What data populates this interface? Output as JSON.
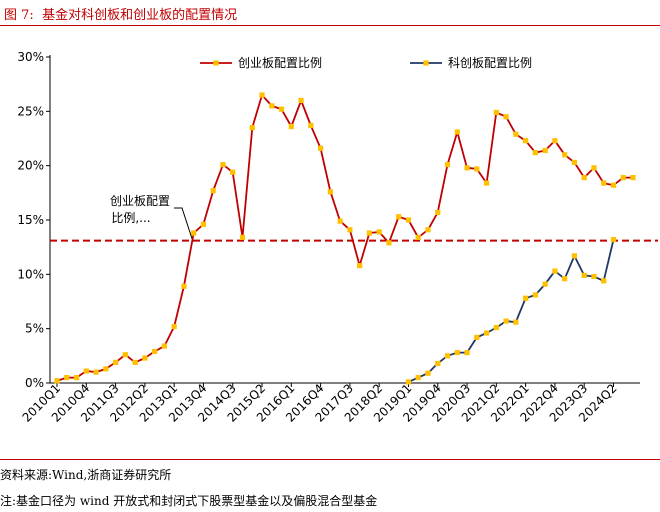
{
  "header": {
    "figure_label": "图 7:",
    "title": "基金对科创板和创业板的配置情况"
  },
  "footer": {
    "source": "资料来源:Wind,浙商证券研究所",
    "note": "注:基金口径为 wind 开放式和封闭式下股票型基金以及偏股混合型基金"
  },
  "colors": {
    "title": "#c00000",
    "chinext": "#c00000",
    "star": "#1f3864",
    "marker": "#ffc000",
    "reference": "#c00000"
  },
  "chart_data": {
    "type": "line",
    "ylim": [
      0,
      30
    ],
    "yticks": [
      "0%",
      "5%",
      "10%",
      "15%",
      "20%",
      "25%",
      "30%"
    ],
    "x_tick_labels": [
      "2010Q1",
      "2010Q4",
      "2011Q3",
      "2012Q2",
      "2013Q1",
      "2013Q4",
      "2014Q3",
      "2015Q2",
      "2016Q1",
      "2016Q4",
      "2017Q3",
      "2018Q2",
      "2019Q1",
      "2019Q4",
      "2020Q3",
      "2021Q2",
      "2022Q1",
      "2022Q4",
      "2023Q3",
      "2024Q2"
    ],
    "x_start": "2010Q1",
    "n_quarters": 60,
    "legend_position": "top",
    "reference_line": {
      "value": 13.1,
      "style": "dashed"
    },
    "annotation": {
      "text_line1": "创业板配置",
      "text_line2": "比例,..."
    },
    "series": [
      {
        "name": "创业板配置比例",
        "color": "#c00000",
        "start_quarter": "2010Q1",
        "values": [
          0.2,
          0.5,
          0.5,
          1.1,
          1.0,
          1.3,
          1.9,
          2.6,
          1.9,
          2.3,
          2.9,
          3.4,
          5.2,
          8.9,
          13.8,
          14.6,
          17.7,
          20.1,
          19.4,
          13.4,
          23.5,
          26.5,
          25.5,
          25.2,
          23.6,
          26.0,
          23.7,
          21.6,
          17.6,
          14.9,
          14.1,
          10.8,
          13.8,
          13.9,
          12.9,
          15.3,
          15.0,
          13.4,
          14.1,
          15.7,
          20.1,
          23.1,
          19.8,
          19.7,
          18.4,
          24.9,
          24.5,
          22.9,
          22.3,
          21.2,
          21.4,
          22.3,
          21.0,
          20.3,
          18.9,
          19.8,
          18.4,
          18.2,
          18.9,
          18.9
        ]
      },
      {
        "name": "科创板配置比例",
        "color": "#1f3864",
        "start_quarter": "2019Q1",
        "values": [
          0.1,
          0.5,
          0.9,
          1.8,
          2.5,
          2.8,
          2.8,
          4.2,
          4.6,
          5.1,
          5.7,
          5.6,
          7.8,
          8.1,
          9.1,
          10.3,
          9.6,
          11.7,
          9.9,
          9.8,
          9.4,
          13.2
        ]
      }
    ]
  }
}
